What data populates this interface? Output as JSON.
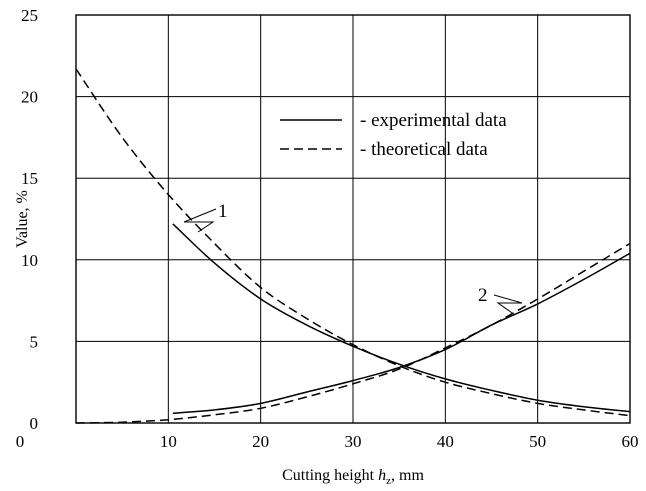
{
  "chart_data": {
    "type": "line",
    "xlabel": "Cutting height h_z, mm",
    "xlabel_parts": {
      "prefix": "Cutting height ",
      "var": "h",
      "sub": "z",
      "suffix": ", mm"
    },
    "ylabel": "Value, %",
    "xlim": [
      0,
      60
    ],
    "ylim": [
      0,
      25
    ],
    "x_ticks": [
      10,
      20,
      30,
      40,
      50,
      60
    ],
    "y_ticks": [
      0,
      5,
      10,
      15,
      20,
      25
    ],
    "grid": true,
    "legend_position": "top-right",
    "legend": [
      {
        "style": "solid",
        "label": "- experimental data"
      },
      {
        "style": "dashed",
        "label": "- theoretical data"
      }
    ],
    "curve_labels": [
      {
        "text": "1",
        "series": "curve-1"
      },
      {
        "text": "2",
        "series": "curve-2"
      }
    ],
    "series": [
      {
        "curve": 1,
        "style": "solid",
        "x": [
          10.5,
          15,
          20,
          25,
          30,
          35,
          40,
          45,
          50,
          55,
          60
        ],
        "y": [
          12.2,
          9.8,
          7.6,
          6.0,
          4.7,
          3.6,
          2.7,
          2.0,
          1.4,
          1.0,
          0.7
        ]
      },
      {
        "curve": 1,
        "style": "dashed",
        "x": [
          0,
          5,
          10,
          15,
          20,
          25,
          30,
          35,
          40,
          45,
          50,
          55,
          60
        ],
        "y": [
          21.7,
          17.5,
          14.0,
          11.0,
          8.3,
          6.4,
          4.8,
          3.5,
          2.5,
          1.8,
          1.2,
          0.8,
          0.45
        ]
      },
      {
        "curve": 2,
        "style": "solid",
        "x": [
          10.5,
          15,
          20,
          25,
          30,
          35,
          40,
          45,
          50,
          55,
          60
        ],
        "y": [
          0.6,
          0.8,
          1.2,
          1.9,
          2.6,
          3.4,
          4.5,
          6.0,
          7.3,
          8.8,
          10.4
        ]
      },
      {
        "curve": 2,
        "style": "dashed",
        "x": [
          0,
          5,
          10,
          15,
          20,
          25,
          30,
          35,
          40,
          45,
          50,
          55,
          60
        ],
        "y": [
          0.0,
          0.05,
          0.2,
          0.5,
          0.9,
          1.6,
          2.4,
          3.3,
          4.6,
          6.0,
          7.6,
          9.3,
          11.0
        ]
      }
    ]
  }
}
